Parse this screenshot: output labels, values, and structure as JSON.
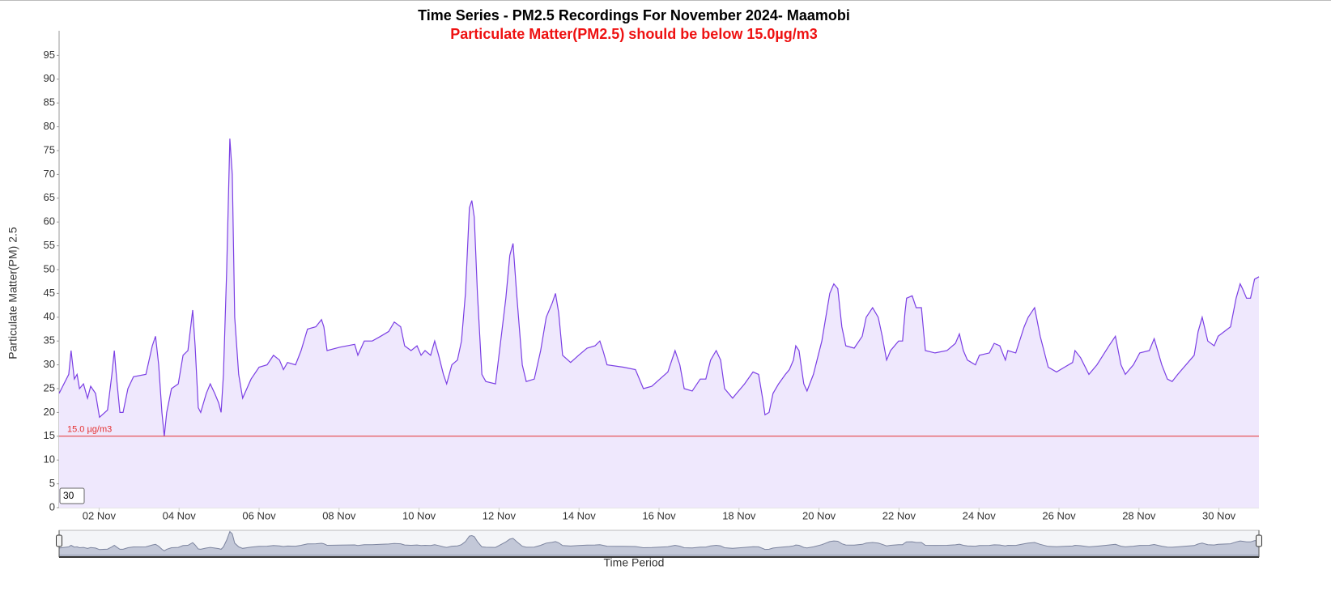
{
  "chart_data": {
    "type": "area",
    "title": "Time Series - PM2.5 Recordings For November 2024- Maamobi",
    "subtitle": "Particulate Matter(PM2.5) should be below 15.0µg/m3",
    "y_label": "Particulate Matter(PM) 2.5",
    "x_label": "Time Period",
    "range_box": "30",
    "threshold": {
      "value": 15,
      "label": "15.0 µg/m3",
      "color": "#e53030"
    },
    "xlim": [
      1,
      31
    ],
    "xticks": [
      {
        "value": 2,
        "label": "02 Nov"
      },
      {
        "value": 4,
        "label": "04 Nov"
      },
      {
        "value": 6,
        "label": "06 Nov"
      },
      {
        "value": 8,
        "label": "08 Nov"
      },
      {
        "value": 10,
        "label": "10 Nov"
      },
      {
        "value": 12,
        "label": "12 Nov"
      },
      {
        "value": 14,
        "label": "14 Nov"
      },
      {
        "value": 16,
        "label": "16 Nov"
      },
      {
        "value": 18,
        "label": "18 Nov"
      },
      {
        "value": 20,
        "label": "20 Nov"
      },
      {
        "value": 22,
        "label": "22 Nov"
      },
      {
        "value": 24,
        "label": "24 Nov"
      },
      {
        "value": 26,
        "label": "26 Nov"
      },
      {
        "value": 28,
        "label": "28 Nov"
      },
      {
        "value": 30,
        "label": "30 Nov"
      }
    ],
    "ylim": [
      0,
      100
    ],
    "yticks": [
      0,
      5,
      10,
      15,
      20,
      25,
      30,
      35,
      40,
      45,
      50,
      55,
      60,
      65,
      70,
      75,
      80,
      85,
      90,
      95
    ],
    "grid": false,
    "color": "#7b3fe4",
    "fill": "#efe8fd",
    "x": [
      1.0,
      1.24,
      1.3,
      1.38,
      1.45,
      1.51,
      1.61,
      1.71,
      1.79,
      1.91,
      2.01,
      2.21,
      2.32,
      2.38,
      2.44,
      2.52,
      2.6,
      2.72,
      2.86,
      3.17,
      3.33,
      3.41,
      3.49,
      3.57,
      3.63,
      3.69,
      3.81,
      3.98,
      4.1,
      4.22,
      4.34,
      4.4,
      4.48,
      4.54,
      4.68,
      4.78,
      4.89,
      4.99,
      5.05,
      5.11,
      5.19,
      5.27,
      5.33,
      5.39,
      5.49,
      5.59,
      5.8,
      6.0,
      6.2,
      6.36,
      6.51,
      6.61,
      6.71,
      6.91,
      7.05,
      7.21,
      7.42,
      7.56,
      7.62,
      7.7,
      8.02,
      8.39,
      8.47,
      8.63,
      8.83,
      9.04,
      9.24,
      9.38,
      9.54,
      9.64,
      9.8,
      9.95,
      10.05,
      10.15,
      10.29,
      10.39,
      10.49,
      10.61,
      10.69,
      10.82,
      10.96,
      11.06,
      11.16,
      11.26,
      11.32,
      11.38,
      11.46,
      11.57,
      11.67,
      11.91,
      11.97,
      12.17,
      12.27,
      12.35,
      12.44,
      12.58,
      12.68,
      12.88,
      13.04,
      13.18,
      13.33,
      13.41,
      13.49,
      13.59,
      13.79,
      13.99,
      14.2,
      14.4,
      14.52,
      14.6,
      14.7,
      15.11,
      15.41,
      15.61,
      15.82,
      16.02,
      16.22,
      16.4,
      16.52,
      16.63,
      16.83,
      17.03,
      17.17,
      17.29,
      17.43,
      17.54,
      17.64,
      17.84,
      17.94,
      18.14,
      18.35,
      18.49,
      18.59,
      18.65,
      18.75,
      18.85,
      18.99,
      19.16,
      19.26,
      19.36,
      19.42,
      19.5,
      19.62,
      19.7,
      19.86,
      20.07,
      20.27,
      20.37,
      20.47,
      20.57,
      20.67,
      20.88,
      21.08,
      21.18,
      21.34,
      21.48,
      21.58,
      21.69,
      21.79,
      21.99,
      22.09,
      22.15,
      22.19,
      22.33,
      22.43,
      22.56,
      22.66,
      22.9,
      23.2,
      23.41,
      23.51,
      23.61,
      23.71,
      23.91,
      24.01,
      24.26,
      24.38,
      24.52,
      24.66,
      24.72,
      24.92,
      25.13,
      25.23,
      25.39,
      25.53,
      25.73,
      25.94,
      26.14,
      26.34,
      26.4,
      26.54,
      26.75,
      26.95,
      27.25,
      27.41,
      27.55,
      27.66,
      27.86,
      28.02,
      28.26,
      28.38,
      28.57,
      28.71,
      28.83,
      28.97,
      29.38,
      29.48,
      29.58,
      29.72,
      29.88,
      29.98,
      30.29,
      30.43,
      30.53,
      30.59,
      30.69,
      30.79,
      30.89,
      31.0
    ],
    "values": [
      24,
      28,
      33,
      27,
      28,
      25,
      26,
      23,
      25.5,
      24,
      19,
      20.5,
      28,
      33,
      27,
      20,
      20,
      25,
      27.5,
      28,
      34,
      36,
      30,
      20,
      15,
      20,
      25,
      26,
      32,
      33,
      41.5,
      34,
      21,
      20,
      24,
      26,
      24,
      22,
      20,
      28,
      50,
      77.5,
      70,
      40,
      28,
      23,
      27,
      29.5,
      30,
      32,
      31,
      29,
      30.5,
      30,
      33,
      37.5,
      38,
      39.5,
      38,
      33,
      33.7,
      34.3,
      32,
      35,
      35,
      36,
      37,
      39,
      38,
      34,
      33,
      34,
      32,
      33,
      32,
      35,
      32,
      28,
      26,
      30,
      31,
      35,
      45,
      63,
      64.5,
      61,
      45,
      28,
      26.5,
      26,
      30,
      44,
      53,
      55.5,
      45,
      30,
      26.5,
      27,
      33,
      40,
      43,
      45,
      41,
      32,
      30.5,
      32,
      33.5,
      34,
      35,
      33,
      30,
      29.5,
      29,
      25,
      25.5,
      27,
      28.5,
      33,
      30,
      25,
      24.5,
      27,
      27,
      31,
      33,
      31,
      25,
      23,
      24,
      26,
      28.5,
      28,
      23,
      19.5,
      20,
      24,
      26,
      28,
      29,
      31,
      34,
      33,
      26,
      24.5,
      28,
      35,
      45,
      47,
      46,
      38,
      34,
      33.5,
      36,
      40,
      42,
      40,
      36,
      31,
      33,
      35,
      35,
      41,
      44,
      44.5,
      42,
      42,
      33,
      32.5,
      33,
      34.5,
      36.5,
      33,
      31,
      30,
      32,
      32.5,
      34.5,
      34,
      31,
      33,
      32.5,
      38,
      40,
      42,
      36,
      29.5,
      28.5,
      29.5,
      30.5,
      33,
      31.5,
      28,
      30,
      34,
      36,
      30,
      28,
      30,
      32.5,
      33,
      35.5,
      30,
      27,
      26.5,
      28,
      32,
      37,
      40,
      35,
      34,
      36,
      38,
      44,
      47,
      46,
      44,
      44,
      48,
      48.5
    ]
  }
}
